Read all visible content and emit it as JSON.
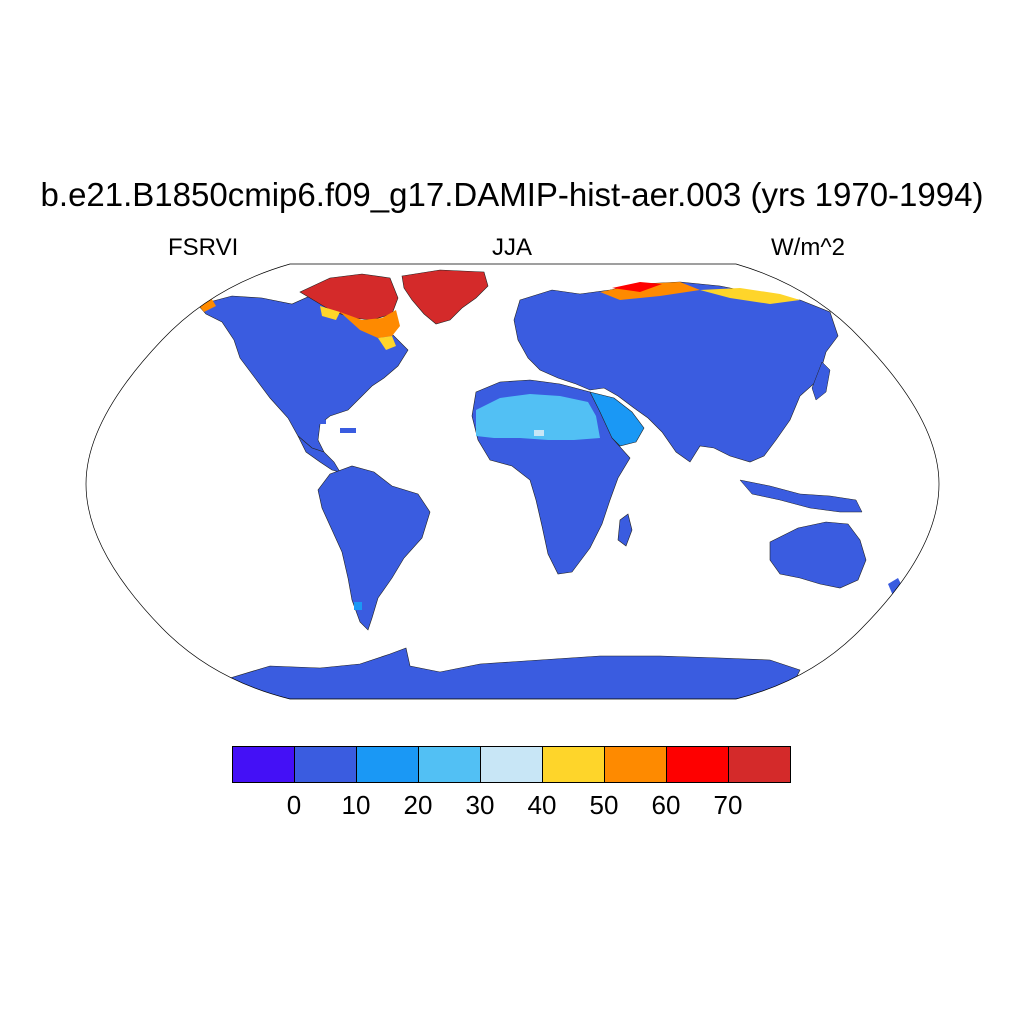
{
  "title": "b.e21.B1850cmip6.f09_g17.DAMIP-hist-aer.003 (yrs 1970-1994)",
  "variable": "FSRVI",
  "season": "JJA",
  "units": "W/m^2",
  "colorbar": {
    "colors": [
      "#4410f6",
      "#3a5ce0",
      "#1a98f5",
      "#52c0f4",
      "#c8e6f6",
      "#fed52a",
      "#fe8a00",
      "#fe0000",
      "#d42a2a"
    ],
    "labels": [
      "0",
      "10",
      "20",
      "30",
      "40",
      "50",
      "60",
      "70"
    ]
  },
  "map_colors": {
    "land_default": "#3a5ce0",
    "dust_belt": "#52c0f4",
    "arabia": "#1a98f5",
    "greenland": "#d42a2a",
    "arctic_canada": "#d42a2a",
    "arctic_edge_orange": "#fe8a00",
    "arctic_edge_yellow": "#fed52a"
  }
}
